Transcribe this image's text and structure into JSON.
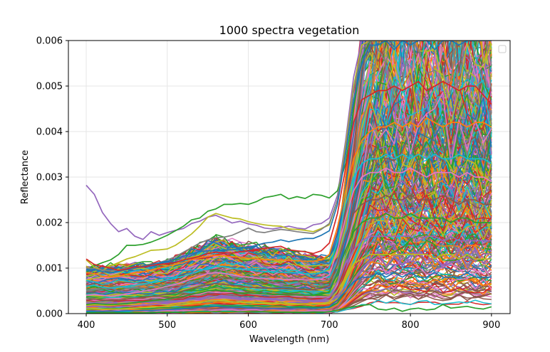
{
  "chart_data": {
    "type": "line",
    "title": "1000 spectra vegetation",
    "xlabel": "Wavelength (nm)",
    "ylabel": "Reflectance",
    "xlim": [
      378,
      923
    ],
    "ylim": [
      0,
      0.006
    ],
    "x_ticks": [
      400,
      500,
      600,
      700,
      800,
      900
    ],
    "x_tick_labels": [
      "400",
      "500",
      "600",
      "700",
      "800",
      "900"
    ],
    "y_ticks": [
      0,
      0.001,
      0.002,
      0.003,
      0.004,
      0.005,
      0.006
    ],
    "y_tick_labels": [
      "0.000",
      "0.001",
      "0.002",
      "0.003",
      "0.004",
      "0.005",
      "0.006"
    ],
    "grid": true,
    "legend": "top-right, empty",
    "series_count": 1000,
    "x": [
      400,
      410,
      420,
      430,
      440,
      450,
      460,
      470,
      480,
      490,
      500,
      510,
      520,
      530,
      540,
      550,
      560,
      570,
      580,
      590,
      600,
      610,
      620,
      630,
      640,
      650,
      660,
      670,
      680,
      690,
      700,
      710,
      720,
      730,
      740,
      750,
      760,
      770,
      780,
      790,
      800,
      810,
      820,
      830,
      840,
      850,
      860,
      870,
      880,
      890,
      900
    ],
    "representative_series": [
      {
        "color": "#9467bd",
        "values": [
          0.00282,
          0.00262,
          0.00222,
          0.00198,
          0.0018,
          0.00187,
          0.0017,
          0.00163,
          0.0018,
          0.00172,
          0.00178,
          0.00183,
          0.00187,
          0.00198,
          0.00203,
          0.00212,
          0.00216,
          0.00208,
          0.00199,
          0.00203,
          0.00197,
          0.00194,
          0.00188,
          0.00186,
          0.00189,
          0.00192,
          0.00188,
          0.00186,
          0.00195,
          0.00198,
          0.0021,
          0.0026,
          0.0038,
          0.0052,
          0.006,
          0.006,
          0.006,
          0.006,
          0.006,
          0.006,
          0.006,
          0.006,
          0.006,
          0.006,
          0.006,
          0.006,
          0.006,
          0.006,
          0.006,
          0.006,
          0.006
        ]
      },
      {
        "color": "#2ca02c",
        "values": [
          0.0009,
          0.00105,
          0.00112,
          0.00118,
          0.0013,
          0.0015,
          0.0015,
          0.00152,
          0.00157,
          0.00164,
          0.00172,
          0.00182,
          0.00192,
          0.00206,
          0.0021,
          0.00225,
          0.0023,
          0.0024,
          0.0024,
          0.00242,
          0.0024,
          0.00246,
          0.00255,
          0.00258,
          0.00262,
          0.00252,
          0.00257,
          0.00253,
          0.00262,
          0.0026,
          0.00254,
          0.0027,
          0.0033,
          0.0045,
          0.0056,
          0.006,
          0.006,
          0.006,
          0.006,
          0.006,
          0.006,
          0.006,
          0.006,
          0.006,
          0.006,
          0.006,
          0.006,
          0.006,
          0.006,
          0.006,
          0.006
        ]
      },
      {
        "color": "#bcbd22",
        "values": [
          0.00118,
          0.00102,
          0.00095,
          0.00105,
          0.00112,
          0.0012,
          0.00125,
          0.00132,
          0.00139,
          0.0014,
          0.00142,
          0.0015,
          0.00162,
          0.00175,
          0.00192,
          0.00212,
          0.0022,
          0.00215,
          0.0021,
          0.00208,
          0.00202,
          0.00198,
          0.00195,
          0.00193,
          0.00192,
          0.00186,
          0.00185,
          0.00183,
          0.0018,
          0.00187,
          0.00195,
          0.0025,
          0.0037,
          0.005,
          0.0059,
          0.006,
          0.006,
          0.006,
          0.006,
          0.006,
          0.006,
          0.006,
          0.006,
          0.006,
          0.006,
          0.006,
          0.006,
          0.006,
          0.006,
          0.006,
          0.006
        ]
      },
      {
        "color": "#7f7f7f",
        "values": [
          0.001,
          0.00098,
          0.00096,
          0.00094,
          0.00096,
          0.001,
          0.00102,
          0.00105,
          0.00108,
          0.00112,
          0.00118,
          0.00125,
          0.00135,
          0.00145,
          0.00155,
          0.00162,
          0.00167,
          0.00168,
          0.00172,
          0.0018,
          0.00188,
          0.0018,
          0.00178,
          0.00182,
          0.00185,
          0.00183,
          0.0018,
          0.00178,
          0.00176,
          0.00185,
          0.00198,
          0.0025,
          0.0036,
          0.0049,
          0.0058,
          0.006,
          0.006,
          0.006,
          0.006,
          0.006,
          0.006,
          0.006,
          0.006,
          0.006,
          0.006,
          0.006,
          0.006,
          0.006,
          0.006,
          0.006,
          0.006
        ]
      },
      {
        "color": "#1f77b4",
        "values": [
          0.00095,
          0.00097,
          0.00092,
          0.0009,
          0.00093,
          0.00097,
          0.001,
          0.00104,
          0.00108,
          0.00112,
          0.00115,
          0.0012,
          0.00126,
          0.00132,
          0.00136,
          0.00138,
          0.00138,
          0.0014,
          0.0014,
          0.00143,
          0.00146,
          0.0015,
          0.00155,
          0.00157,
          0.00162,
          0.00158,
          0.00162,
          0.00165,
          0.00165,
          0.00172,
          0.00182,
          0.0024,
          0.0035,
          0.0047,
          0.0055,
          0.0059,
          0.0059,
          0.006,
          0.0058,
          0.006,
          0.0059,
          0.006,
          0.006,
          0.0058,
          0.006,
          0.006,
          0.0059,
          0.006,
          0.006,
          0.006,
          0.006
        ]
      },
      {
        "color": "#d62728",
        "values": [
          0.0012,
          0.00108,
          0.00104,
          0.001,
          0.00095,
          0.00098,
          0.00103,
          0.00102,
          0.00106,
          0.00108,
          0.0011,
          0.00112,
          0.00118,
          0.00122,
          0.00126,
          0.00132,
          0.00135,
          0.00134,
          0.00133,
          0.00136,
          0.00138,
          0.00141,
          0.00143,
          0.00146,
          0.00148,
          0.0014,
          0.00138,
          0.00136,
          0.00132,
          0.00138,
          0.00155,
          0.0022,
          0.0032,
          0.0042,
          0.0047,
          0.0048,
          0.0049,
          0.0049,
          0.005,
          0.0049,
          0.005,
          0.0051,
          0.0049,
          0.005,
          0.0051,
          0.005,
          0.0049,
          0.005,
          0.005,
          0.0048,
          0.0046
        ]
      },
      {
        "color": "#ff7f0e",
        "values": [
          0.0009,
          0.00088,
          0.00082,
          0.0008,
          0.00082,
          0.00086,
          0.0009,
          0.00092,
          0.00096,
          0.001,
          0.00104,
          0.00108,
          0.00112,
          0.00118,
          0.00123,
          0.00126,
          0.00128,
          0.00127,
          0.00125,
          0.00124,
          0.00122,
          0.0012,
          0.00118,
          0.00118,
          0.00118,
          0.00117,
          0.00116,
          0.00115,
          0.00115,
          0.00118,
          0.0013,
          0.0019,
          0.0027,
          0.0034,
          0.0038,
          0.004,
          0.0041,
          0.0041,
          0.0042,
          0.0041,
          0.0042,
          0.0041,
          0.0043,
          0.0042,
          0.0041,
          0.0042,
          0.0042,
          0.0041,
          0.0042,
          0.0042,
          0.0041
        ]
      },
      {
        "color": "#17becf",
        "values": [
          0.0006,
          0.00062,
          0.00058,
          0.00056,
          0.00058,
          0.0006,
          0.00062,
          0.00065,
          0.00068,
          0.0007,
          0.00074,
          0.00078,
          0.00082,
          0.00088,
          0.00094,
          0.001,
          0.00104,
          0.00103,
          0.001,
          0.00098,
          0.00096,
          0.00094,
          0.00092,
          0.00092,
          0.00091,
          0.0009,
          0.0009,
          0.00088,
          0.00087,
          0.0009,
          0.001,
          0.0016,
          0.0024,
          0.003,
          0.0033,
          0.0034,
          0.0034,
          0.0035,
          0.0034,
          0.0035,
          0.0034,
          0.0035,
          0.0034,
          0.0035,
          0.0034,
          0.0034,
          0.0035,
          0.0034,
          0.0034,
          0.0034,
          0.0033
        ]
      },
      {
        "color": "#e377c2",
        "values": [
          0.0004,
          0.00042,
          0.0004,
          0.00038,
          0.0004,
          0.00043,
          0.00046,
          0.00049,
          0.00052,
          0.00056,
          0.0006,
          0.00064,
          0.0007,
          0.00076,
          0.00082,
          0.00088,
          0.0009,
          0.00088,
          0.00085,
          0.00082,
          0.0008,
          0.00078,
          0.00077,
          0.00076,
          0.00076,
          0.00075,
          0.00075,
          0.00074,
          0.00074,
          0.00076,
          0.00085,
          0.0014,
          0.0021,
          0.0027,
          0.003,
          0.0031,
          0.0031,
          0.0032,
          0.0031,
          0.0031,
          0.0032,
          0.0031,
          0.003,
          0.0031,
          0.0031,
          0.0031,
          0.003,
          0.0031,
          0.003,
          0.003,
          0.0029
        ]
      },
      {
        "color": "#8c564b",
        "values": [
          0.0003,
          0.00032,
          0.0003,
          0.00029,
          0.0003,
          0.00032,
          0.00034,
          0.00036,
          0.00038,
          0.0004,
          0.00043,
          0.00046,
          0.0005,
          0.00055,
          0.0006,
          0.00064,
          0.00066,
          0.00064,
          0.00062,
          0.0006,
          0.00058,
          0.00057,
          0.00056,
          0.00055,
          0.00055,
          0.00054,
          0.00054,
          0.00053,
          0.00053,
          0.00055,
          0.00062,
          0.0011,
          0.0017,
          0.0022,
          0.0024,
          0.0025,
          0.0025,
          0.0026,
          0.0025,
          0.0025,
          0.0026,
          0.0025,
          0.0025,
          0.0025,
          0.0026,
          0.0025,
          0.0024,
          0.0025,
          0.0025,
          0.0024,
          0.0024
        ]
      },
      {
        "color": "#2ca02c",
        "values": [
          0.0002,
          0.00022,
          0.00021,
          0.0002,
          0.00021,
          0.00022,
          0.00024,
          0.00026,
          0.00028,
          0.0003,
          0.00032,
          0.00035,
          0.00038,
          0.00042,
          0.00046,
          0.0005,
          0.00052,
          0.0005,
          0.00048,
          0.00046,
          0.00045,
          0.00044,
          0.00043,
          0.00042,
          0.00042,
          0.00041,
          0.00041,
          0.0004,
          0.0004,
          0.00042,
          0.00048,
          0.0009,
          0.0014,
          0.0018,
          0.002,
          0.0021,
          0.0021,
          0.0022,
          0.0021,
          0.0021,
          0.0022,
          0.0021,
          0.0021,
          0.0021,
          0.0021,
          0.002,
          0.0021,
          0.0021,
          0.002,
          0.002,
          0.002
        ]
      },
      {
        "color": "#9467bd",
        "values": [
          0.00015,
          0.00016,
          0.00015,
          0.00014,
          0.00015,
          0.00016,
          0.00017,
          0.00018,
          0.0002,
          0.00021,
          0.00023,
          0.00025,
          0.00028,
          0.00031,
          0.00034,
          0.00037,
          0.00038,
          0.00037,
          0.00035,
          0.00034,
          0.00033,
          0.00032,
          0.00031,
          0.0003,
          0.0003,
          0.0003,
          0.0003,
          0.00029,
          0.00029,
          0.0003,
          0.00035,
          0.0007,
          0.0011,
          0.0014,
          0.0016,
          0.0017,
          0.0017,
          0.0017,
          0.0017,
          0.0017,
          0.0017,
          0.0016,
          0.0017,
          0.0017,
          0.0016,
          0.0017,
          0.0016,
          0.0016,
          0.0016,
          0.0016,
          0.0016
        ]
      },
      {
        "color": "#bcbd22",
        "values": [
          0.0001,
          0.00011,
          0.0001,
          0.0001,
          0.0001,
          0.00011,
          0.00012,
          0.00013,
          0.00014,
          0.00015,
          0.00016,
          0.00018,
          0.0002,
          0.00022,
          0.00025,
          0.00027,
          0.00028,
          0.00027,
          0.00026,
          0.00025,
          0.00024,
          0.00023,
          0.00022,
          0.00022,
          0.00022,
          0.00021,
          0.00021,
          0.00021,
          0.00021,
          0.00022,
          0.00026,
          0.0005,
          0.0008,
          0.0011,
          0.0012,
          0.0013,
          0.0013,
          0.0013,
          0.0013,
          0.0013,
          0.0013,
          0.0013,
          0.0013,
          0.0012,
          0.0013,
          0.0013,
          0.0012,
          0.0013,
          0.0012,
          0.0012,
          0.0012
        ]
      },
      {
        "color": "#1f77b4",
        "values": [
          5e-05,
          5e-05,
          5e-05,
          5e-05,
          5e-05,
          6e-05,
          6e-05,
          7e-05,
          7e-05,
          8e-05,
          9e-05,
          0.0001,
          0.00011,
          0.00012,
          0.00014,
          0.00015,
          0.00016,
          0.00015,
          0.00014,
          0.00014,
          0.00013,
          0.00013,
          0.00012,
          0.00012,
          0.00012,
          0.00012,
          0.00012,
          0.00012,
          0.00012,
          0.00012,
          0.00015,
          0.0003,
          0.0005,
          0.0007,
          0.0008,
          0.0008,
          0.0009,
          0.0008,
          0.0009,
          0.0008,
          0.0009,
          0.0008,
          0.0008,
          0.0009,
          0.0008,
          0.0008,
          0.0008,
          0.0009,
          0.0008,
          0.0008,
          0.0008
        ]
      },
      {
        "color": "#2ca02c",
        "values": [
          2e-05,
          2e-05,
          2e-05,
          2e-05,
          2e-05,
          2e-05,
          2e-05,
          2e-05,
          2e-05,
          3e-05,
          3e-05,
          3e-05,
          3e-05,
          4e-05,
          4e-05,
          4e-05,
          4e-05,
          4e-05,
          4e-05,
          4e-05,
          4e-05,
          4e-05,
          4e-05,
          3e-05,
          3e-05,
          3e-05,
          3e-05,
          3e-05,
          3e-05,
          3e-05,
          4e-05,
          8e-05,
          0.00012,
          0.00015,
          0.00018,
          0.0002,
          0.0001,
          8e-05,
          0.00012,
          5e-05,
          0.0001,
          0.00012,
          8e-05,
          0.0001,
          0.0002,
          0.00012,
          0.00014,
          0.00016,
          0.00012,
          0.0001,
          0.00015
        ]
      }
    ]
  }
}
